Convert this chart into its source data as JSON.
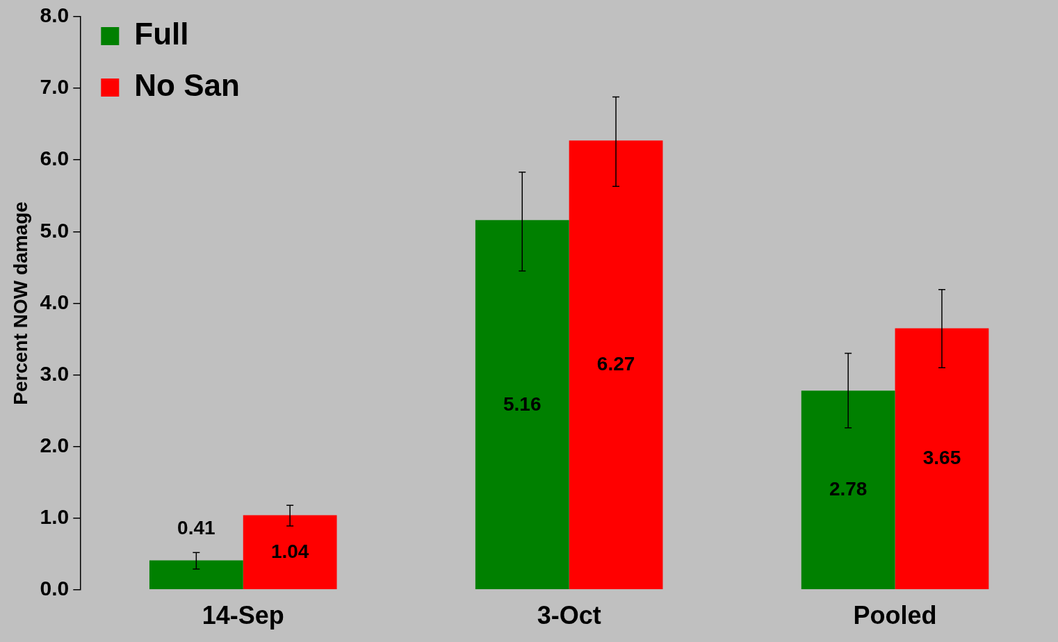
{
  "chart_data": {
    "type": "bar",
    "ylabel": "Percent NOW damage",
    "categories": [
      "14-Sep",
      "3-Oct",
      "Pooled"
    ],
    "series": [
      {
        "name": "Full",
        "color": "#008000",
        "values": [
          0.41,
          5.16,
          2.78
        ],
        "errors": [
          [
            0.29,
            0.52
          ],
          [
            4.45,
            5.83
          ],
          [
            2.26,
            3.3
          ]
        ]
      },
      {
        "name": "No San",
        "color": "#ff0000",
        "values": [
          1.04,
          6.27,
          3.65
        ],
        "errors": [
          [
            0.89,
            1.18
          ],
          [
            5.63,
            6.88
          ],
          [
            3.1,
            4.19
          ]
        ]
      }
    ],
    "ylim": [
      0,
      8
    ],
    "yticks": [
      {
        "value": 0,
        "label": "0.0"
      },
      {
        "value": 1,
        "label": "1.0"
      },
      {
        "value": 2,
        "label": "2.0"
      },
      {
        "value": 3,
        "label": "3.0"
      },
      {
        "value": 4,
        "label": "4.0"
      },
      {
        "value": 5,
        "label": "5.0"
      },
      {
        "value": 6,
        "label": "6.0"
      },
      {
        "value": 7,
        "label": "7.0"
      },
      {
        "value": 8,
        "label": "8.0"
      }
    ],
    "data_labels": true,
    "grid": false,
    "legend": "top left"
  }
}
